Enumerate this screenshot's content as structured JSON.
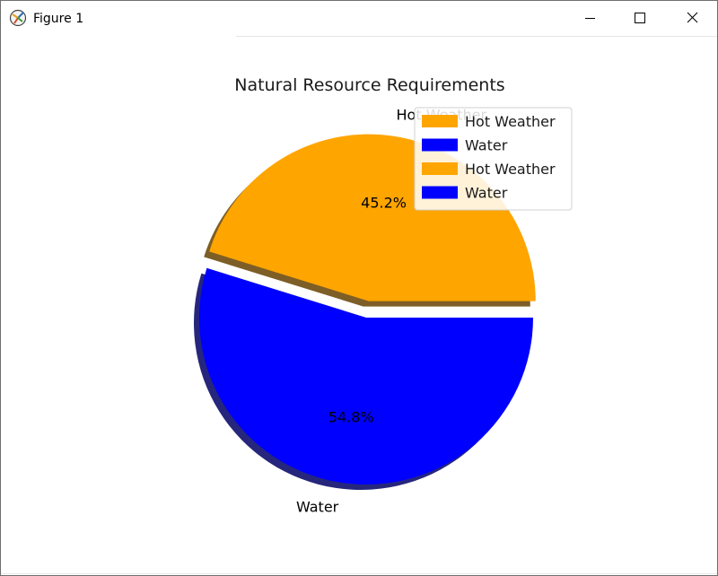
{
  "window": {
    "title": "Figure 1",
    "icon": "matplotlib-figure-icon"
  },
  "controls": {
    "minimize_icon": "minimize-icon",
    "maximize_icon": "maximize-icon",
    "close_icon": "close-icon"
  },
  "chart_data": {
    "type": "pie",
    "title": "Natural Resource Requirements",
    "labels": [
      "Hot Weather",
      "Water"
    ],
    "values": [
      45.2,
      54.8
    ],
    "autopct": [
      "45.2%",
      "54.8%"
    ],
    "colors": [
      "#FFA500",
      "#0000FF"
    ],
    "explode": [
      0.1,
      0
    ],
    "shadow": true,
    "legend": {
      "placement": "upper-right",
      "entries": [
        {
          "label": "Hot Weather",
          "color": "#FFA500"
        },
        {
          "label": "Water",
          "color": "#0000FF"
        },
        {
          "label": "Hot Weather",
          "color": "#FFA500"
        },
        {
          "label": "Water",
          "color": "#0000FF"
        }
      ]
    }
  }
}
